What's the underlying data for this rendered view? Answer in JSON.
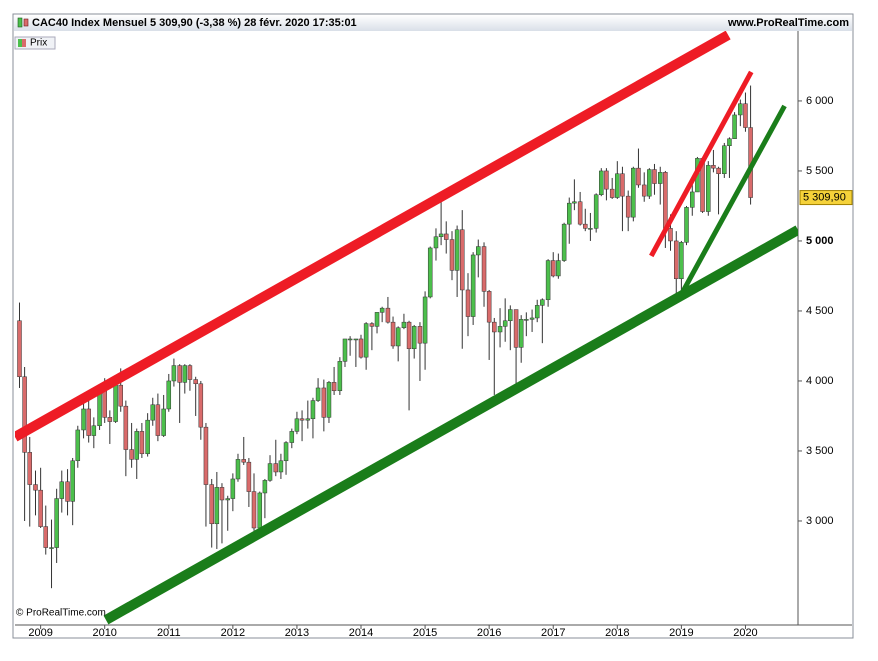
{
  "chart_data": {
    "type": "candlestick",
    "title": "CAC40 Index Mensuel 5 309,90 (-3,38 %) 28 févr. 2020 17:35:01",
    "source": "www.ProRealTime.com",
    "legend": "Prix",
    "copyright": "© ProRealTime.com",
    "up_color": "#4cbf4c",
    "down_color": "#d96b6b",
    "xlim": [
      2008.6,
      2020.82
    ],
    "xticks": [
      2009,
      2010,
      2011,
      2012,
      2013,
      2014,
      2015,
      2016,
      2017,
      2018,
      2019,
      2020
    ],
    "ylim": [
      2257,
      6471
    ],
    "yticks": [
      {
        "value": 3000,
        "label": "3 000"
      },
      {
        "value": 3500,
        "label": "3 500"
      },
      {
        "value": 4000,
        "label": "4 000"
      },
      {
        "value": 4500,
        "label": "4 500"
      },
      {
        "value": 5000,
        "label": "5 000",
        "bold": true
      },
      {
        "value": 5500,
        "label": "5 500"
      },
      {
        "value": 6000,
        "label": "6 000"
      }
    ],
    "last_price": {
      "value": 5309.9,
      "label": "5 309,90"
    },
    "x": [
      2008.67,
      2008.75,
      2008.83,
      2008.92,
      2009.0,
      2009.08,
      2009.17,
      2009.25,
      2009.33,
      2009.42,
      2009.5,
      2009.58,
      2009.67,
      2009.75,
      2009.83,
      2009.92,
      2010.0,
      2010.08,
      2010.17,
      2010.25,
      2010.33,
      2010.42,
      2010.5,
      2010.58,
      2010.67,
      2010.75,
      2010.83,
      2010.92,
      2011.0,
      2011.08,
      2011.17,
      2011.25,
      2011.33,
      2011.42,
      2011.5,
      2011.58,
      2011.67,
      2011.75,
      2011.83,
      2011.92,
      2012.0,
      2012.08,
      2012.17,
      2012.25,
      2012.33,
      2012.42,
      2012.5,
      2012.58,
      2012.67,
      2012.75,
      2012.83,
      2012.92,
      2013.0,
      2013.08,
      2013.17,
      2013.25,
      2013.33,
      2013.42,
      2013.5,
      2013.58,
      2013.67,
      2013.75,
      2013.83,
      2013.92,
      2014.0,
      2014.08,
      2014.17,
      2014.25,
      2014.33,
      2014.42,
      2014.5,
      2014.58,
      2014.67,
      2014.75,
      2014.83,
      2014.92,
      2015.0,
      2015.08,
      2015.17,
      2015.25,
      2015.33,
      2015.42,
      2015.5,
      2015.58,
      2015.67,
      2015.75,
      2015.83,
      2015.92,
      2016.0,
      2016.08,
      2016.17,
      2016.25,
      2016.33,
      2016.42,
      2016.5,
      2016.58,
      2016.67,
      2016.75,
      2016.83,
      2016.92,
      2017.0,
      2017.08,
      2017.17,
      2017.25,
      2017.33,
      2017.42,
      2017.5,
      2017.58,
      2017.67,
      2017.75,
      2017.83,
      2017.92,
      2018.0,
      2018.08,
      2018.17,
      2018.25,
      2018.33,
      2018.42,
      2018.5,
      2018.58,
      2018.67,
      2018.75,
      2018.83,
      2018.92,
      2019.0,
      2019.08,
      2019.17,
      2019.25,
      2019.33,
      2019.42,
      2019.5,
      2019.58,
      2019.67,
      2019.75,
      2019.83,
      2019.92,
      2020.0,
      2020.08
    ],
    "open": [
      4430,
      4030,
      3490,
      3260,
      3220,
      2960,
      2810,
      2810,
      3160,
      3280,
      3140,
      3430,
      3650,
      3800,
      3610,
      3680,
      3940,
      3740,
      3710,
      3970,
      3820,
      3510,
      3440,
      3640,
      3480,
      3720,
      3830,
      3610,
      3800,
      4000,
      4110,
      3990,
      4110,
      4010,
      3980,
      3670,
      3260,
      2980,
      3240,
      3150,
      3160,
      3300,
      3440,
      3420,
      3210,
      2950,
      3200,
      3290,
      3410,
      3350,
      3430,
      3560,
      3640,
      3730,
      3720,
      3730,
      3860,
      3950,
      3740,
      3990,
      3930,
      4140,
      4300,
      4300,
      4300,
      4170,
      4410,
      4390,
      4490,
      4520,
      4420,
      4250,
      4380,
      4420,
      4230,
      4390,
      4270,
      4600,
      4950,
      5030,
      5050,
      5010,
      4790,
      5080,
      4650,
      4460,
      4900,
      4960,
      4640,
      4420,
      4350,
      4390,
      4430,
      4510,
      4240,
      4440,
      4440,
      4450,
      4540,
      4580,
      4860,
      4750,
      4860,
      5120,
      5270,
      5280,
      5120,
      5090,
      5090,
      5330,
      5500,
      5370,
      5310,
      5480,
      5320,
      5170,
      5520,
      5400,
      5320,
      5510,
      5410,
      5490,
      5090,
      5000,
      4730,
      4990,
      5240,
      5350,
      5590,
      5210,
      5540,
      5520,
      5480,
      5680,
      5730,
      5900,
      5980,
      5810
    ],
    "high": [
      4560,
      4100,
      3600,
      3360,
      3380,
      3110,
      3010,
      3230,
      3360,
      3370,
      3450,
      3680,
      3840,
      3890,
      3740,
      3960,
      4020,
      3790,
      4010,
      4090,
      3860,
      3700,
      3660,
      3700,
      3770,
      3880,
      3910,
      3900,
      4050,
      4160,
      4120,
      4120,
      4120,
      4030,
      4000,
      3700,
      3300,
      3350,
      3270,
      3180,
      3340,
      3480,
      3600,
      3450,
      3340,
      3210,
      3300,
      3470,
      3580,
      3480,
      3570,
      3660,
      3780,
      3790,
      3860,
      3880,
      4020,
      4010,
      4000,
      4100,
      4170,
      4300,
      4320,
      4300,
      4330,
      4420,
      4420,
      4490,
      4530,
      4600,
      4460,
      4390,
      4480,
      4430,
      4400,
      4420,
      4640,
      4960,
      5090,
      5280,
      5140,
      5070,
      5110,
      5220,
      4770,
      4920,
      5010,
      4990,
      4650,
      4450,
      4520,
      4590,
      4540,
      4510,
      4470,
      4490,
      4510,
      4580,
      4590,
      4870,
      4920,
      4910,
      5130,
      5310,
      5440,
      5350,
      5230,
      5200,
      5340,
      5520,
      5520,
      5450,
      5570,
      5530,
      5360,
      5530,
      5660,
      5490,
      5520,
      5550,
      5530,
      5500,
      5190,
      5070,
      5000,
      5250,
      5420,
      5600,
      5590,
      5570,
      5650,
      5530,
      5700,
      5740,
      5920,
      6010,
      6060,
      6110
    ],
    "low": [
      3950,
      3000,
      2960,
      3040,
      2950,
      2760,
      2520,
      2700,
      3060,
      3040,
      2970,
      3380,
      3590,
      3560,
      3520,
      3650,
      3700,
      3550,
      3700,
      3780,
      3320,
      3380,
      3300,
      3450,
      3460,
      3680,
      3570,
      3600,
      3780,
      3960,
      3700,
      3910,
      3930,
      3750,
      3580,
      2960,
      2810,
      2800,
      2840,
      2930,
      3070,
      3280,
      3400,
      3100,
      2930,
      2900,
      3020,
      3280,
      3320,
      3300,
      3330,
      3520,
      3620,
      3570,
      3660,
      3590,
      3850,
      3640,
      3700,
      3900,
      3900,
      4100,
      4180,
      4100,
      4160,
      4080,
      4220,
      4340,
      4420,
      4410,
      4230,
      4140,
      4370,
      3790,
      4160,
      4000,
      4080,
      4590,
      4860,
      4970,
      4910,
      4720,
      4600,
      4230,
      4320,
      4400,
      4740,
      4530,
      4150,
      3900,
      4240,
      4280,
      4220,
      3960,
      4130,
      4320,
      4350,
      4420,
      4270,
      4530,
      4740,
      4730,
      4850,
      4980,
      5220,
      5110,
      5070,
      5000,
      5060,
      5320,
      5290,
      5300,
      5300,
      5070,
      5070,
      5140,
      5380,
      5280,
      5300,
      5330,
      5260,
      4950,
      4930,
      4560,
      4640,
      4970,
      5180,
      5350,
      5200,
      5180,
      5490,
      5190,
      5450,
      5450,
      5730,
      5820,
      5780,
      5260
    ],
    "close": [
      4030,
      3490,
      3260,
      3220,
      2960,
      2810,
      2810,
      3160,
      3280,
      3140,
      3430,
      3650,
      3800,
      3610,
      3680,
      3940,
      3740,
      3710,
      3970,
      3820,
      3510,
      3440,
      3640,
      3480,
      3720,
      3830,
      3610,
      3800,
      4000,
      4110,
      3990,
      4110,
      4010,
      3980,
      3670,
      3260,
      2980,
      3240,
      3150,
      3160,
      3300,
      3440,
      3420,
      3210,
      2950,
      3200,
      3290,
      3410,
      3350,
      3430,
      3560,
      3640,
      3730,
      3720,
      3730,
      3860,
      3950,
      3740,
      3990,
      3930,
      4140,
      4300,
      4300,
      4300,
      4170,
      4410,
      4390,
      4490,
      4520,
      4420,
      4250,
      4380,
      4420,
      4230,
      4390,
      4270,
      4600,
      4950,
      5030,
      5050,
      5010,
      4790,
      5080,
      4650,
      4460,
      4900,
      4960,
      4640,
      4420,
      4350,
      4390,
      4430,
      4510,
      4240,
      4440,
      4440,
      4450,
      4540,
      4580,
      4860,
      4750,
      4860,
      5120,
      5270,
      5280,
      5120,
      5090,
      5090,
      5330,
      5500,
      5370,
      5310,
      5480,
      5320,
      5170,
      5520,
      5400,
      5320,
      5510,
      5410,
      5490,
      5090,
      5000,
      4730,
      4990,
      5240,
      5350,
      5590,
      5210,
      5540,
      5520,
      5480,
      5680,
      5730,
      5900,
      5980,
      5810,
      5310
    ],
    "trendlines": [
      {
        "color": "#ee1c25",
        "width": 10,
        "x": [
          2008.6,
          2019.73
        ],
        "y": [
          3600,
          6471
        ]
      },
      {
        "color": "#1a7d1a",
        "width": 10,
        "x": [
          2010.02,
          2020.82
        ],
        "y": [
          2293,
          5079
        ]
      },
      {
        "color": "#ee1c25",
        "width": 5,
        "x": [
          2018.53,
          2020.09
        ],
        "y": [
          4893,
          6207
        ]
      },
      {
        "color": "#1a7d1a",
        "width": 5,
        "x": [
          2019.02,
          2020.61
        ],
        "y": [
          4636,
          5964
        ]
      }
    ]
  }
}
